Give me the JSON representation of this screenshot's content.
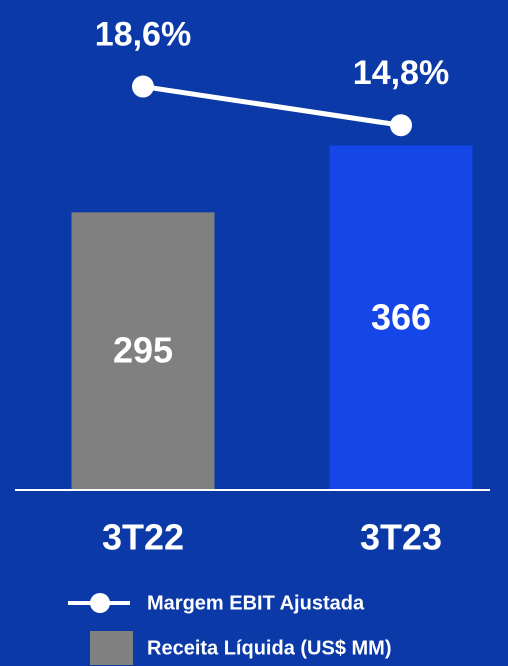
{
  "chart_data": {
    "type": "bar",
    "categories": [
      "3T22",
      "3T23"
    ],
    "series": [
      {
        "name": "Receita Líquida (US$ MM)",
        "type": "bar",
        "color": "#808080",
        "colors": [
          "#808080",
          "#1446e8"
        ],
        "values": [
          295,
          366
        ]
      },
      {
        "name": "Margem EBIT Ajustada",
        "type": "line",
        "color": "#ffffff",
        "axis": "y2",
        "values": [
          18.6,
          14.8
        ],
        "value_labels": [
          "18,6%",
          "14,8%"
        ]
      }
    ],
    "ylim": [
      0,
      460
    ],
    "y2lim": [
      -21,
      21.5
    ],
    "background": "#0b3aa8"
  }
}
